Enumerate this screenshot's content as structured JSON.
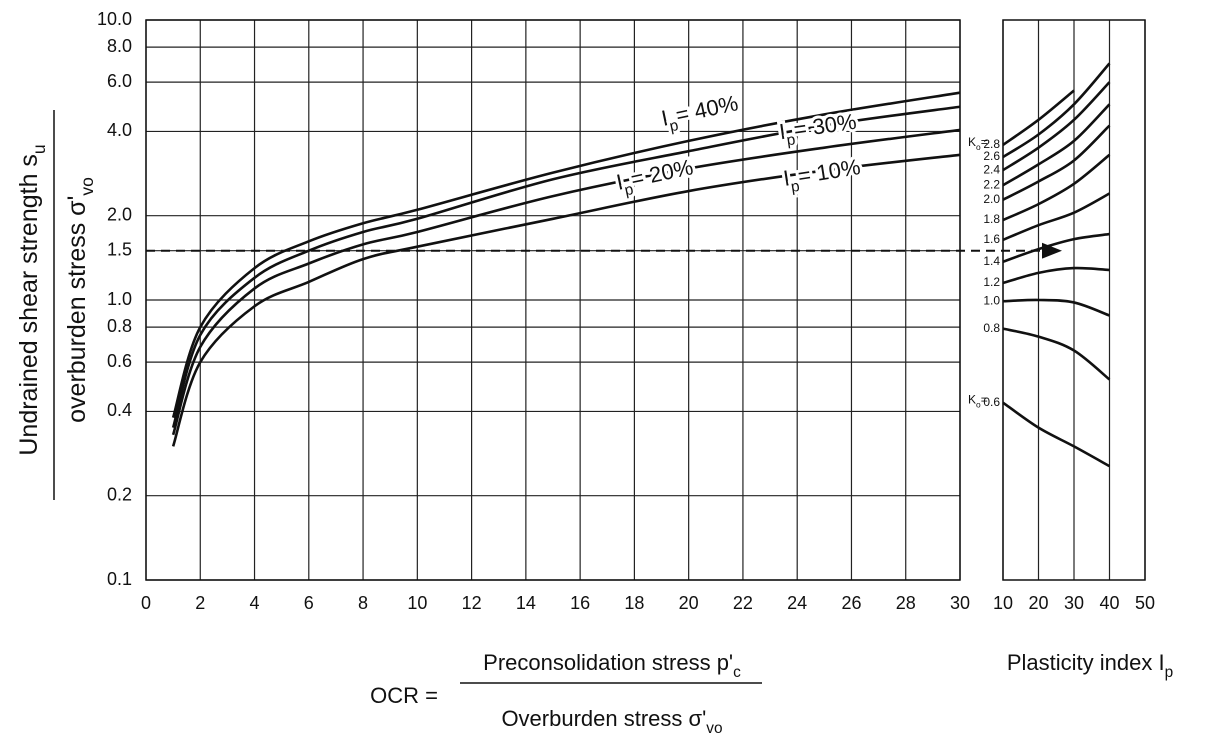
{
  "chart_data": [
    {
      "type": "line",
      "log_y": true,
      "grid": true,
      "y_label_top": [
        "Undrained shear strength s",
        "u"
      ],
      "y_label_bottom": [
        "overburden stress σ'",
        "vo"
      ],
      "x_label_prefix": "OCR =",
      "x_label_top": [
        "Preconsolidation stress p'",
        "c"
      ],
      "x_label_bottom": [
        "Overburden stress σ'",
        "vo"
      ],
      "xlim": [
        0,
        30
      ],
      "xticks": [
        0,
        2,
        4,
        6,
        8,
        10,
        12,
        14,
        16,
        18,
        20,
        22,
        24,
        26,
        28,
        30
      ],
      "ylim": [
        0.1,
        10
      ],
      "yticks": [
        {
          "value": 10,
          "label": "10.0"
        },
        {
          "value": 8,
          "label": "8.0"
        },
        {
          "value": 6,
          "label": "6.0"
        },
        {
          "value": 4,
          "label": "4.0"
        },
        {
          "value": 2,
          "label": "2.0"
        },
        1.5,
        {
          "value": 1,
          "label": "1.0"
        },
        0.8,
        0.6,
        0.4,
        0.2,
        0.1
      ],
      "reference_y": 1.5,
      "x": [
        1,
        2,
        4,
        6,
        8,
        10,
        15,
        20,
        25,
        30
      ],
      "series": [
        {
          "name": [
            "I",
            "p",
            "= 40%"
          ],
          "color": "#111",
          "values": [
            0.38,
            0.8,
            1.3,
            1.62,
            1.88,
            2.1,
            2.85,
            3.7,
            4.6,
            5.5
          ]
        },
        {
          "name": [
            "I",
            "p",
            "= 30%"
          ],
          "color": "#111",
          "values": [
            0.35,
            0.75,
            1.2,
            1.5,
            1.75,
            1.95,
            2.7,
            3.4,
            4.2,
            4.9
          ]
        },
        {
          "name": [
            "I",
            "p",
            "= 20%"
          ],
          "color": "#111",
          "values": [
            0.33,
            0.68,
            1.1,
            1.35,
            1.58,
            1.75,
            2.35,
            2.95,
            3.5,
            4.05
          ]
        },
        {
          "name": [
            "I",
            "p",
            "= 10%"
          ],
          "color": "#111",
          "values": [
            0.3,
            0.6,
            0.95,
            1.16,
            1.4,
            1.55,
            1.95,
            2.45,
            2.9,
            3.3
          ]
        }
      ]
    },
    {
      "type": "line",
      "log_y": true,
      "grid": true,
      "x_label": [
        "Plasticity index I",
        "p"
      ],
      "ko_label": [
        "K",
        "o",
        "="
      ],
      "xlim": [
        10,
        50
      ],
      "xticks": [
        10,
        20,
        30,
        40,
        50
      ],
      "ylim": [
        0.1,
        10
      ],
      "x": [
        10,
        20,
        30,
        40
      ],
      "series": [
        {
          "name": "2.8",
          "color": "#111",
          "values": [
            3.58,
            4.4,
            5.6,
            null
          ]
        },
        {
          "name": "2.6",
          "color": "#111",
          "values": [
            3.24,
            3.9,
            5.0,
            7.0
          ]
        },
        {
          "name": "2.4",
          "color": "#111",
          "values": [
            2.91,
            3.5,
            4.4,
            6.0
          ]
        },
        {
          "name": "2.2",
          "color": "#111",
          "values": [
            2.57,
            3.05,
            3.7,
            5.0
          ]
        },
        {
          "name": "2.0",
          "color": "#111",
          "values": [
            2.28,
            2.65,
            3.15,
            4.2
          ]
        },
        {
          "name": "1.8",
          "color": "#111",
          "values": [
            1.93,
            2.2,
            2.6,
            3.3
          ]
        },
        {
          "name": "1.6",
          "color": "#111",
          "values": [
            1.64,
            1.85,
            2.05,
            2.4
          ]
        },
        {
          "name": "1.4",
          "color": "#111",
          "values": [
            1.37,
            1.52,
            1.65,
            1.72
          ]
        },
        {
          "name": "1.2",
          "color": "#111",
          "values": [
            1.15,
            1.25,
            1.3,
            1.28
          ]
        },
        {
          "name": "1.0",
          "color": "#111",
          "values": [
            0.99,
            1.0,
            0.98,
            0.88
          ]
        },
        {
          "name": "0.8",
          "color": "#111",
          "values": [
            0.79,
            0.74,
            0.66,
            0.52
          ]
        },
        {
          "name": "0.6",
          "color": "#111",
          "values": [
            0.43,
            0.35,
            0.3,
            0.255
          ]
        }
      ]
    }
  ]
}
